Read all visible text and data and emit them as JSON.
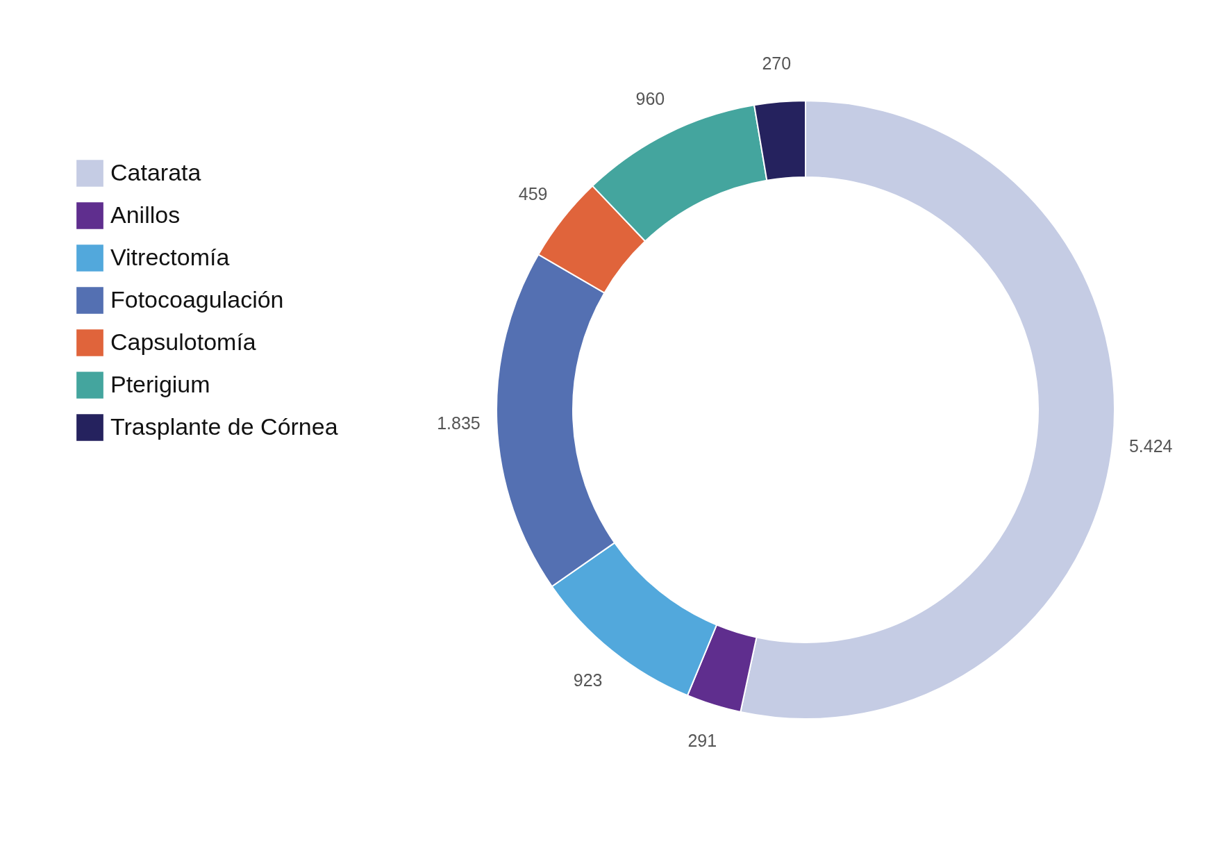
{
  "chart_data": {
    "type": "donut",
    "categories": [
      "Catarata",
      "Anillos",
      "Vitrectomía",
      "Fotocoagulación",
      "Capsulotomía",
      "Pterigium",
      "Trasplante de Córnea"
    ],
    "values": [
      5424,
      291,
      923,
      1835,
      459,
      960,
      270
    ],
    "colors": [
      "#c5cce4",
      "#5f2e8e",
      "#52a8dc",
      "#5470b2",
      "#e0643b",
      "#44a59e",
      "#25225e"
    ],
    "value_labels": [
      "5.424",
      "291",
      "923",
      "1.835",
      "459",
      "960",
      "270"
    ],
    "legend": "left"
  }
}
